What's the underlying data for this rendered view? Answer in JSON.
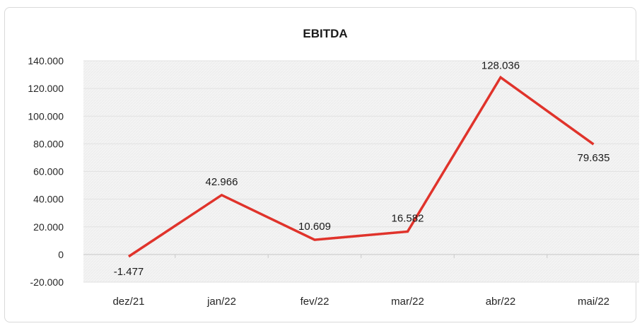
{
  "chart_data": {
    "type": "line",
    "title": "EBITDA",
    "xlabel": "",
    "ylabel": "",
    "categories": [
      "dez/21",
      "jan/22",
      "fev/22",
      "mar/22",
      "abr/22",
      "mai/22"
    ],
    "series": [
      {
        "values": [
          -1477,
          42966,
          10609,
          16582,
          128036,
          79635
        ],
        "color": "#e0332b"
      }
    ],
    "data_labels": [
      "-1.477",
      "42.966",
      "10.609",
      "16.582",
      "128.036",
      "79.635"
    ],
    "ylim": [
      -20000,
      140000
    ],
    "yticks": [
      140000,
      120000,
      100000,
      80000,
      60000,
      40000,
      20000,
      0,
      -20000
    ],
    "ytick_labels": [
      "140.000",
      "120.000",
      "100.000",
      "80.000",
      "60.000",
      "40.000",
      "20.000",
      "0",
      "-20.000"
    ],
    "grid": true,
    "legend": "none"
  }
}
